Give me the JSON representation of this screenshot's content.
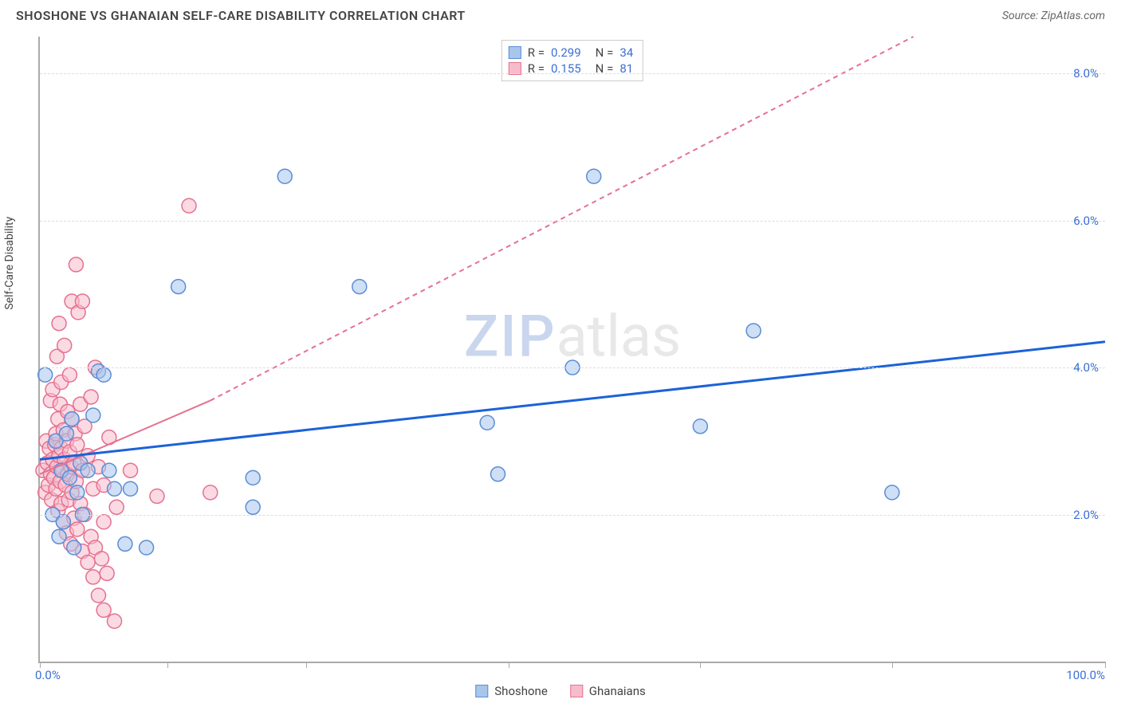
{
  "title": "SHOSHONE VS GHANAIAN SELF-CARE DISABILITY CORRELATION CHART",
  "source": "Source: ZipAtlas.com",
  "watermark": {
    "zip": "ZIP",
    "atlas": "atlas"
  },
  "y_axis_label": "Self-Care Disability",
  "chart": {
    "type": "scatter",
    "xlim": [
      0,
      100
    ],
    "ylim": [
      0,
      8.5
    ],
    "y_ticks": [
      2.0,
      4.0,
      6.0,
      8.0
    ],
    "y_tick_labels": [
      "2.0%",
      "4.0%",
      "6.0%",
      "8.0%"
    ],
    "x_tick_positions": [
      0,
      12,
      25,
      44,
      62,
      80,
      100
    ],
    "x_tick_labels": {
      "left": "0.0%",
      "right": "100.0%"
    },
    "grid_color": "#dddddd",
    "axis_color": "#aaaaaa",
    "background_color": "#ffffff",
    "marker_radius": 9,
    "marker_opacity": 0.55
  },
  "series": {
    "shoshone": {
      "label": "Shoshone",
      "fill_color": "#a8c5ec",
      "stroke_color": "#5b8dd6",
      "R": "0.299",
      "N": "34",
      "trend": {
        "solid": [
          [
            0,
            2.75
          ],
          [
            100,
            4.35
          ]
        ],
        "color": "#1b62d8",
        "width": 3
      },
      "points": [
        [
          0.5,
          3.9
        ],
        [
          1.2,
          2.0
        ],
        [
          1.5,
          3.0
        ],
        [
          1.8,
          1.7
        ],
        [
          2.0,
          2.6
        ],
        [
          2.2,
          1.9
        ],
        [
          2.5,
          3.1
        ],
        [
          2.8,
          2.5
        ],
        [
          3.0,
          3.3
        ],
        [
          3.2,
          1.55
        ],
        [
          3.5,
          2.3
        ],
        [
          3.8,
          2.7
        ],
        [
          4.0,
          2.0
        ],
        [
          4.5,
          2.6
        ],
        [
          5.0,
          3.35
        ],
        [
          5.5,
          3.95
        ],
        [
          6.0,
          3.9
        ],
        [
          6.5,
          2.6
        ],
        [
          7.0,
          2.35
        ],
        [
          8.0,
          1.6
        ],
        [
          8.5,
          2.35
        ],
        [
          10.0,
          1.55
        ],
        [
          13.0,
          5.1
        ],
        [
          20.0,
          2.5
        ],
        [
          20.0,
          2.1
        ],
        [
          23.0,
          6.6
        ],
        [
          30.0,
          5.1
        ],
        [
          42.0,
          3.25
        ],
        [
          43.0,
          2.55
        ],
        [
          50.0,
          4.0
        ],
        [
          52.0,
          6.6
        ],
        [
          62.0,
          3.2
        ],
        [
          67.0,
          4.5
        ],
        [
          80.0,
          2.3
        ]
      ]
    },
    "ghanaians": {
      "label": "Ghanaians",
      "fill_color": "#f7bccc",
      "stroke_color": "#e5718f",
      "R": "0.155",
      "N": "81",
      "trend": {
        "solid": [
          [
            0,
            2.55
          ],
          [
            16,
            3.55
          ]
        ],
        "dashed": [
          [
            16,
            3.55
          ],
          [
            82,
            8.5
          ]
        ],
        "color": "#e5718f",
        "width": 2
      },
      "points": [
        [
          0.3,
          2.6
        ],
        [
          0.5,
          2.3
        ],
        [
          0.6,
          3.0
        ],
        [
          0.7,
          2.7
        ],
        [
          0.8,
          2.4
        ],
        [
          0.9,
          2.9
        ],
        [
          1.0,
          2.55
        ],
        [
          1.0,
          3.55
        ],
        [
          1.1,
          2.2
        ],
        [
          1.2,
          2.75
        ],
        [
          1.2,
          3.7
        ],
        [
          1.3,
          2.5
        ],
        [
          1.4,
          2.95
        ],
        [
          1.5,
          2.35
        ],
        [
          1.5,
          3.1
        ],
        [
          1.6,
          2.65
        ],
        [
          1.6,
          4.15
        ],
        [
          1.7,
          2.05
        ],
        [
          1.7,
          3.3
        ],
        [
          1.8,
          2.8
        ],
        [
          1.8,
          4.6
        ],
        [
          1.9,
          2.45
        ],
        [
          1.9,
          3.5
        ],
        [
          2.0,
          2.15
        ],
        [
          2.0,
          2.9
        ],
        [
          2.0,
          3.8
        ],
        [
          2.1,
          2.6
        ],
        [
          2.2,
          1.9
        ],
        [
          2.2,
          3.15
        ],
        [
          2.3,
          2.75
        ],
        [
          2.3,
          4.3
        ],
        [
          2.4,
          2.4
        ],
        [
          2.5,
          1.75
        ],
        [
          2.5,
          3.0
        ],
        [
          2.6,
          2.55
        ],
        [
          2.6,
          3.4
        ],
        [
          2.7,
          2.2
        ],
        [
          2.8,
          2.85
        ],
        [
          2.8,
          3.9
        ],
        [
          2.9,
          1.6
        ],
        [
          2.9,
          2.65
        ],
        [
          3.0,
          2.3
        ],
        [
          3.0,
          3.3
        ],
        [
          3.0,
          4.9
        ],
        [
          3.2,
          1.95
        ],
        [
          3.2,
          2.7
        ],
        [
          3.3,
          3.1
        ],
        [
          3.4,
          2.45
        ],
        [
          3.4,
          5.4
        ],
        [
          3.5,
          1.8
        ],
        [
          3.5,
          2.95
        ],
        [
          3.6,
          4.75
        ],
        [
          3.8,
          2.15
        ],
        [
          3.8,
          3.5
        ],
        [
          4.0,
          1.5
        ],
        [
          4.0,
          2.6
        ],
        [
          4.0,
          4.9
        ],
        [
          4.2,
          2.0
        ],
        [
          4.2,
          3.2
        ],
        [
          4.5,
          1.35
        ],
        [
          4.5,
          2.8
        ],
        [
          4.8,
          1.7
        ],
        [
          4.8,
          3.6
        ],
        [
          5.0,
          1.15
        ],
        [
          5.0,
          2.35
        ],
        [
          5.2,
          1.55
        ],
        [
          5.2,
          4.0
        ],
        [
          5.5,
          0.9
        ],
        [
          5.5,
          2.65
        ],
        [
          5.8,
          1.4
        ],
        [
          6.0,
          0.7
        ],
        [
          6.0,
          1.9
        ],
        [
          6.3,
          1.2
        ],
        [
          6.5,
          3.05
        ],
        [
          7.0,
          0.55
        ],
        [
          7.2,
          2.1
        ],
        [
          8.5,
          2.6
        ],
        [
          11.0,
          2.25
        ],
        [
          14.0,
          6.2
        ],
        [
          16.0,
          2.3
        ],
        [
          6.0,
          2.4
        ]
      ]
    }
  },
  "legend_top_labels": {
    "R_prefix": "R =",
    "N_prefix": "N ="
  }
}
